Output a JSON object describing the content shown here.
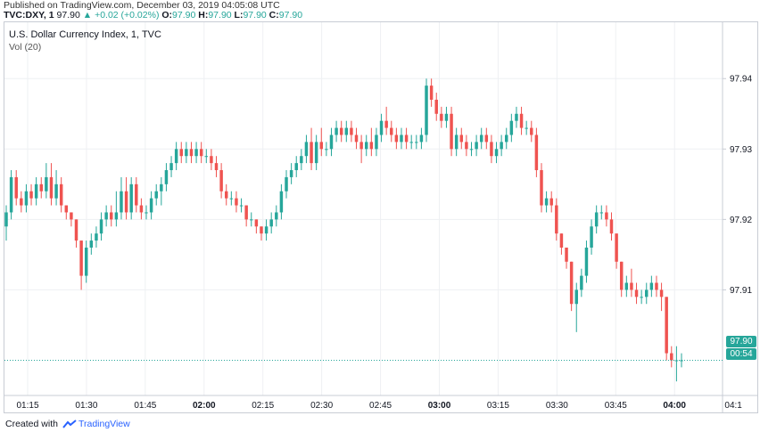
{
  "header": {
    "published": "Published on TradingView.com, December 03, 2019 04:05:08 UTC",
    "symbol": "TVC:DXY, 1",
    "last": "97.90",
    "change": "+0.02 (+0.02%)",
    "o_label": "O:",
    "o_val": "97.90",
    "h_label": "H:",
    "h_val": "97.90",
    "l_label": "L:",
    "l_val": "97.90",
    "c_label": "C:",
    "c_val": "97.90"
  },
  "chart_title": "U.S. Dollar Currency Index, 1, TVC",
  "vol_label": "Vol (20)",
  "price_badge": "97.90",
  "countdown_badge": "00:54",
  "footer": {
    "created": "Created with",
    "brand": "TradingView"
  },
  "colors": {
    "up": "#26a69a",
    "down": "#ef5350",
    "grid": "#eef0f3",
    "axis_text": "#131722"
  },
  "chart_data": {
    "type": "candlestick",
    "title": "U.S. Dollar Currency Index, 1, TVC",
    "ylim": [
      97.895,
      97.948
    ],
    "yticks": [
      97.91,
      97.92,
      97.93,
      97.94
    ],
    "ytick_labels": [
      "97.91",
      "97.92",
      "97.93",
      "97.94"
    ],
    "xtick_labels": [
      "01:15",
      "01:30",
      "01:45",
      "02:00",
      "02:15",
      "02:30",
      "02:45",
      "03:00",
      "03:15",
      "03:30",
      "03:45",
      "04:00",
      "04:1"
    ],
    "xtick_bold": [
      false,
      false,
      false,
      true,
      false,
      false,
      false,
      true,
      false,
      false,
      false,
      true,
      false
    ],
    "xtick_minutes": [
      15,
      30,
      45,
      60,
      75,
      90,
      105,
      120,
      135,
      150,
      165,
      180,
      195
    ],
    "last_price": 97.9,
    "candles": [
      {
        "t": 0,
        "o": 97.919,
        "h": 97.922,
        "l": 97.917,
        "c": 97.921
      },
      {
        "t": 1,
        "o": 97.921,
        "h": 97.927,
        "l": 97.92,
        "c": 97.926
      },
      {
        "t": 2,
        "o": 97.926,
        "h": 97.927,
        "l": 97.922,
        "c": 97.923
      },
      {
        "t": 3,
        "o": 97.923,
        "h": 97.924,
        "l": 97.921,
        "c": 97.922
      },
      {
        "t": 4,
        "o": 97.922,
        "h": 97.925,
        "l": 97.921,
        "c": 97.924
      },
      {
        "t": 5,
        "o": 97.924,
        "h": 97.925,
        "l": 97.922,
        "c": 97.923
      },
      {
        "t": 6,
        "o": 97.923,
        "h": 97.926,
        "l": 97.922,
        "c": 97.925
      },
      {
        "t": 7,
        "o": 97.925,
        "h": 97.926,
        "l": 97.923,
        "c": 97.924
      },
      {
        "t": 8,
        "o": 97.924,
        "h": 97.928,
        "l": 97.923,
        "c": 97.926
      },
      {
        "t": 9,
        "o": 97.926,
        "h": 97.928,
        "l": 97.922,
        "c": 97.923
      },
      {
        "t": 10,
        "o": 97.923,
        "h": 97.927,
        "l": 97.922,
        "c": 97.925
      },
      {
        "t": 11,
        "o": 97.925,
        "h": 97.926,
        "l": 97.921,
        "c": 97.922
      },
      {
        "t": 12,
        "o": 97.922,
        "h": 97.922,
        "l": 97.92,
        "c": 97.921
      },
      {
        "t": 13,
        "o": 97.921,
        "h": 97.921,
        "l": 97.919,
        "c": 97.92
      },
      {
        "t": 14,
        "o": 97.92,
        "h": 97.92,
        "l": 97.916,
        "c": 97.917
      },
      {
        "t": 15,
        "o": 97.917,
        "h": 97.917,
        "l": 97.91,
        "c": 97.912
      },
      {
        "t": 16,
        "o": 97.912,
        "h": 97.917,
        "l": 97.911,
        "c": 97.916
      },
      {
        "t": 17,
        "o": 97.916,
        "h": 97.918,
        "l": 97.915,
        "c": 97.917
      },
      {
        "t": 18,
        "o": 97.917,
        "h": 97.919,
        "l": 97.916,
        "c": 97.918
      },
      {
        "t": 19,
        "o": 97.918,
        "h": 97.921,
        "l": 97.917,
        "c": 97.92
      },
      {
        "t": 20,
        "o": 97.92,
        "h": 97.922,
        "l": 97.919,
        "c": 97.921
      },
      {
        "t": 21,
        "o": 97.921,
        "h": 97.922,
        "l": 97.919,
        "c": 97.92
      },
      {
        "t": 22,
        "o": 97.92,
        "h": 97.924,
        "l": 97.919,
        "c": 97.921
      },
      {
        "t": 23,
        "o": 97.921,
        "h": 97.926,
        "l": 97.92,
        "c": 97.924
      },
      {
        "t": 24,
        "o": 97.924,
        "h": 97.926,
        "l": 97.92,
        "c": 97.921
      },
      {
        "t": 25,
        "o": 97.921,
        "h": 97.926,
        "l": 97.92,
        "c": 97.925
      },
      {
        "t": 26,
        "o": 97.925,
        "h": 97.926,
        "l": 97.921,
        "c": 97.922
      },
      {
        "t": 27,
        "o": 97.922,
        "h": 97.923,
        "l": 97.92,
        "c": 97.921
      },
      {
        "t": 28,
        "o": 97.921,
        "h": 97.922,
        "l": 97.92,
        "c": 97.921
      },
      {
        "t": 29,
        "o": 97.921,
        "h": 97.924,
        "l": 97.92,
        "c": 97.923
      },
      {
        "t": 30,
        "o": 97.923,
        "h": 97.925,
        "l": 97.922,
        "c": 97.924
      },
      {
        "t": 31,
        "o": 97.924,
        "h": 97.926,
        "l": 97.922,
        "c": 97.925
      },
      {
        "t": 32,
        "o": 97.925,
        "h": 97.928,
        "l": 97.924,
        "c": 97.927
      },
      {
        "t": 33,
        "o": 97.927,
        "h": 97.929,
        "l": 97.926,
        "c": 97.928
      },
      {
        "t": 34,
        "o": 97.928,
        "h": 97.931,
        "l": 97.927,
        "c": 97.93
      },
      {
        "t": 35,
        "o": 97.93,
        "h": 97.931,
        "l": 97.928,
        "c": 97.929
      },
      {
        "t": 36,
        "o": 97.929,
        "h": 97.931,
        "l": 97.928,
        "c": 97.93
      },
      {
        "t": 37,
        "o": 97.93,
        "h": 97.931,
        "l": 97.928,
        "c": 97.929
      },
      {
        "t": 38,
        "o": 97.929,
        "h": 97.931,
        "l": 97.928,
        "c": 97.93
      },
      {
        "t": 39,
        "o": 97.93,
        "h": 97.931,
        "l": 97.928,
        "c": 97.929
      },
      {
        "t": 40,
        "o": 97.929,
        "h": 97.93,
        "l": 97.928,
        "c": 97.929
      },
      {
        "t": 41,
        "o": 97.929,
        "h": 97.93,
        "l": 97.927,
        "c": 97.928
      },
      {
        "t": 42,
        "o": 97.928,
        "h": 97.929,
        "l": 97.926,
        "c": 97.927
      },
      {
        "t": 43,
        "o": 97.927,
        "h": 97.928,
        "l": 97.923,
        "c": 97.924
      },
      {
        "t": 44,
        "o": 97.924,
        "h": 97.925,
        "l": 97.922,
        "c": 97.923
      },
      {
        "t": 45,
        "o": 97.923,
        "h": 97.924,
        "l": 97.922,
        "c": 97.923
      },
      {
        "t": 46,
        "o": 97.923,
        "h": 97.924,
        "l": 97.921,
        "c": 97.922
      },
      {
        "t": 47,
        "o": 97.922,
        "h": 97.923,
        "l": 97.921,
        "c": 97.922
      },
      {
        "t": 48,
        "o": 97.922,
        "h": 97.922,
        "l": 97.919,
        "c": 97.92
      },
      {
        "t": 49,
        "o": 97.92,
        "h": 97.921,
        "l": 97.919,
        "c": 97.92
      },
      {
        "t": 50,
        "o": 97.92,
        "h": 97.92,
        "l": 97.918,
        "c": 97.919
      },
      {
        "t": 51,
        "o": 97.919,
        "h": 97.919,
        "l": 97.917,
        "c": 97.918
      },
      {
        "t": 52,
        "o": 97.918,
        "h": 97.92,
        "l": 97.917,
        "c": 97.919
      },
      {
        "t": 53,
        "o": 97.919,
        "h": 97.921,
        "l": 97.918,
        "c": 97.92
      },
      {
        "t": 54,
        "o": 97.92,
        "h": 97.922,
        "l": 97.919,
        "c": 97.921
      },
      {
        "t": 55,
        "o": 97.921,
        "h": 97.925,
        "l": 97.92,
        "c": 97.924
      },
      {
        "t": 56,
        "o": 97.924,
        "h": 97.927,
        "l": 97.923,
        "c": 97.926
      },
      {
        "t": 57,
        "o": 97.926,
        "h": 97.928,
        "l": 97.925,
        "c": 97.927
      },
      {
        "t": 58,
        "o": 97.927,
        "h": 97.929,
        "l": 97.926,
        "c": 97.928
      },
      {
        "t": 59,
        "o": 97.928,
        "h": 97.93,
        "l": 97.927,
        "c": 97.929
      },
      {
        "t": 60,
        "o": 97.929,
        "h": 97.932,
        "l": 97.928,
        "c": 97.931
      },
      {
        "t": 61,
        "o": 97.931,
        "h": 97.933,
        "l": 97.927,
        "c": 97.928
      },
      {
        "t": 62,
        "o": 97.928,
        "h": 97.932,
        "l": 97.927,
        "c": 97.931
      },
      {
        "t": 63,
        "o": 97.931,
        "h": 97.933,
        "l": 97.929,
        "c": 97.93
      },
      {
        "t": 64,
        "o": 97.93,
        "h": 97.931,
        "l": 97.929,
        "c": 97.93
      },
      {
        "t": 65,
        "o": 97.93,
        "h": 97.933,
        "l": 97.929,
        "c": 97.932
      },
      {
        "t": 66,
        "o": 97.932,
        "h": 97.934,
        "l": 97.931,
        "c": 97.933
      },
      {
        "t": 67,
        "o": 97.933,
        "h": 97.934,
        "l": 97.931,
        "c": 97.932
      },
      {
        "t": 68,
        "o": 97.932,
        "h": 97.934,
        "l": 97.931,
        "c": 97.933
      },
      {
        "t": 69,
        "o": 97.933,
        "h": 97.934,
        "l": 97.931,
        "c": 97.932
      },
      {
        "t": 70,
        "o": 97.932,
        "h": 97.933,
        "l": 97.93,
        "c": 97.931
      },
      {
        "t": 71,
        "o": 97.931,
        "h": 97.932,
        "l": 97.928,
        "c": 97.93
      },
      {
        "t": 72,
        "o": 97.93,
        "h": 97.932,
        "l": 97.929,
        "c": 97.931
      },
      {
        "t": 73,
        "o": 97.931,
        "h": 97.933,
        "l": 97.929,
        "c": 97.93
      },
      {
        "t": 74,
        "o": 97.93,
        "h": 97.933,
        "l": 97.929,
        "c": 97.932
      },
      {
        "t": 75,
        "o": 97.932,
        "h": 97.935,
        "l": 97.931,
        "c": 97.934
      },
      {
        "t": 76,
        "o": 97.934,
        "h": 97.936,
        "l": 97.932,
        "c": 97.933
      },
      {
        "t": 77,
        "o": 97.933,
        "h": 97.934,
        "l": 97.931,
        "c": 97.932
      },
      {
        "t": 78,
        "o": 97.932,
        "h": 97.933,
        "l": 97.93,
        "c": 97.931
      },
      {
        "t": 79,
        "o": 97.931,
        "h": 97.933,
        "l": 97.93,
        "c": 97.932
      },
      {
        "t": 80,
        "o": 97.932,
        "h": 97.933,
        "l": 97.93,
        "c": 97.931
      },
      {
        "t": 81,
        "o": 97.931,
        "h": 97.932,
        "l": 97.93,
        "c": 97.931
      },
      {
        "t": 82,
        "o": 97.931,
        "h": 97.932,
        "l": 97.93,
        "c": 97.931
      },
      {
        "t": 83,
        "o": 97.931,
        "h": 97.933,
        "l": 97.93,
        "c": 97.932
      },
      {
        "t": 84,
        "o": 97.932,
        "h": 97.94,
        "l": 97.931,
        "c": 97.939
      },
      {
        "t": 85,
        "o": 97.939,
        "h": 97.94,
        "l": 97.936,
        "c": 97.937
      },
      {
        "t": 86,
        "o": 97.937,
        "h": 97.938,
        "l": 97.934,
        "c": 97.935
      },
      {
        "t": 87,
        "o": 97.935,
        "h": 97.936,
        "l": 97.933,
        "c": 97.934
      },
      {
        "t": 88,
        "o": 97.934,
        "h": 97.936,
        "l": 97.933,
        "c": 97.935
      },
      {
        "t": 89,
        "o": 97.935,
        "h": 97.936,
        "l": 97.929,
        "c": 97.93
      },
      {
        "t": 90,
        "o": 97.93,
        "h": 97.933,
        "l": 97.929,
        "c": 97.932
      },
      {
        "t": 91,
        "o": 97.932,
        "h": 97.933,
        "l": 97.93,
        "c": 97.931
      },
      {
        "t": 92,
        "o": 97.931,
        "h": 97.932,
        "l": 97.929,
        "c": 97.93
      },
      {
        "t": 93,
        "o": 97.93,
        "h": 97.931,
        "l": 97.929,
        "c": 97.93
      },
      {
        "t": 94,
        "o": 97.93,
        "h": 97.932,
        "l": 97.929,
        "c": 97.931
      },
      {
        "t": 95,
        "o": 97.931,
        "h": 97.933,
        "l": 97.93,
        "c": 97.932
      },
      {
        "t": 96,
        "o": 97.932,
        "h": 97.933,
        "l": 97.93,
        "c": 97.931
      },
      {
        "t": 97,
        "o": 97.931,
        "h": 97.932,
        "l": 97.928,
        "c": 97.929
      },
      {
        "t": 98,
        "o": 97.929,
        "h": 97.931,
        "l": 97.928,
        "c": 97.93
      },
      {
        "t": 99,
        "o": 97.93,
        "h": 97.932,
        "l": 97.929,
        "c": 97.931
      },
      {
        "t": 100,
        "o": 97.931,
        "h": 97.933,
        "l": 97.93,
        "c": 97.932
      },
      {
        "t": 101,
        "o": 97.932,
        "h": 97.935,
        "l": 97.931,
        "c": 97.934
      },
      {
        "t": 102,
        "o": 97.934,
        "h": 97.936,
        "l": 97.933,
        "c": 97.935
      },
      {
        "t": 103,
        "o": 97.935,
        "h": 97.936,
        "l": 97.932,
        "c": 97.933
      },
      {
        "t": 104,
        "o": 97.933,
        "h": 97.934,
        "l": 97.932,
        "c": 97.933
      },
      {
        "t": 105,
        "o": 97.933,
        "h": 97.934,
        "l": 97.931,
        "c": 97.932
      },
      {
        "t": 106,
        "o": 97.932,
        "h": 97.933,
        "l": 97.926,
        "c": 97.927
      },
      {
        "t": 107,
        "o": 97.927,
        "h": 97.928,
        "l": 97.921,
        "c": 97.922
      },
      {
        "t": 108,
        "o": 97.922,
        "h": 97.924,
        "l": 97.921,
        "c": 97.923
      },
      {
        "t": 109,
        "o": 97.923,
        "h": 97.924,
        "l": 97.921,
        "c": 97.922
      },
      {
        "t": 110,
        "o": 97.922,
        "h": 97.923,
        "l": 97.917,
        "c": 97.918
      },
      {
        "t": 111,
        "o": 97.918,
        "h": 97.918,
        "l": 97.915,
        "c": 97.916
      },
      {
        "t": 112,
        "o": 97.916,
        "h": 97.916,
        "l": 97.913,
        "c": 97.914
      },
      {
        "t": 113,
        "o": 97.914,
        "h": 97.914,
        "l": 97.907,
        "c": 97.908
      },
      {
        "t": 114,
        "o": 97.908,
        "h": 97.911,
        "l": 97.904,
        "c": 97.91
      },
      {
        "t": 115,
        "o": 97.91,
        "h": 97.913,
        "l": 97.909,
        "c": 97.912
      },
      {
        "t": 116,
        "o": 97.912,
        "h": 97.917,
        "l": 97.911,
        "c": 97.916
      },
      {
        "t": 117,
        "o": 97.916,
        "h": 97.92,
        "l": 97.915,
        "c": 97.919
      },
      {
        "t": 118,
        "o": 97.919,
        "h": 97.922,
        "l": 97.918,
        "c": 97.921
      },
      {
        "t": 119,
        "o": 97.921,
        "h": 97.922,
        "l": 97.92,
        "c": 97.921
      },
      {
        "t": 120,
        "o": 97.921,
        "h": 97.922,
        "l": 97.919,
        "c": 97.92
      },
      {
        "t": 121,
        "o": 97.92,
        "h": 97.921,
        "l": 97.917,
        "c": 97.918
      },
      {
        "t": 122,
        "o": 97.918,
        "h": 97.918,
        "l": 97.913,
        "c": 97.914
      },
      {
        "t": 123,
        "o": 97.914,
        "h": 97.914,
        "l": 97.909,
        "c": 97.91
      },
      {
        "t": 124,
        "o": 97.91,
        "h": 97.912,
        "l": 97.909,
        "c": 97.911
      },
      {
        "t": 125,
        "o": 97.911,
        "h": 97.913,
        "l": 97.909,
        "c": 97.91
      },
      {
        "t": 126,
        "o": 97.91,
        "h": 97.911,
        "l": 97.908,
        "c": 97.909
      },
      {
        "t": 127,
        "o": 97.909,
        "h": 97.91,
        "l": 97.908,
        "c": 97.909
      },
      {
        "t": 128,
        "o": 97.909,
        "h": 97.911,
        "l": 97.908,
        "c": 97.91
      },
      {
        "t": 129,
        "o": 97.91,
        "h": 97.912,
        "l": 97.909,
        "c": 97.911
      },
      {
        "t": 130,
        "o": 97.911,
        "h": 97.912,
        "l": 97.909,
        "c": 97.91
      },
      {
        "t": 131,
        "o": 97.91,
        "h": 97.911,
        "l": 97.907,
        "c": 97.909
      },
      {
        "t": 132,
        "o": 97.909,
        "h": 97.909,
        "l": 97.9,
        "c": 97.901
      },
      {
        "t": 133,
        "o": 97.901,
        "h": 97.902,
        "l": 97.899,
        "c": 97.9
      },
      {
        "t": 134,
        "o": 97.9,
        "h": 97.902,
        "l": 97.897,
        "c": 97.9
      },
      {
        "t": 135,
        "o": 97.9,
        "h": 97.901,
        "l": 97.899,
        "c": 97.9
      }
    ]
  }
}
